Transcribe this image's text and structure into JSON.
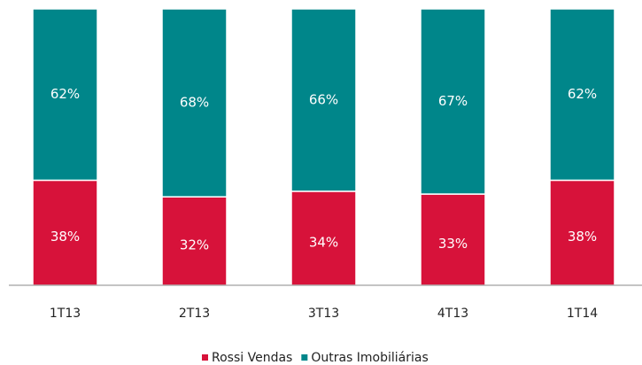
{
  "chart_data": {
    "type": "stacked_bar",
    "categories": [
      "1T13",
      "2T13",
      "3T13",
      "4T13",
      "1T14"
    ],
    "series": [
      {
        "name": "Rossi Vendas",
        "color": "#d7123a",
        "values": [
          38,
          32,
          34,
          33,
          38
        ],
        "value_labels": [
          "38%",
          "32%",
          "34%",
          "33%",
          "38%"
        ]
      },
      {
        "name": "Outras Imobiliárias",
        "color": "#00868a",
        "values": [
          62,
          68,
          66,
          67,
          62
        ],
        "value_labels": [
          "62%",
          "68%",
          "66%",
          "67%",
          "62%"
        ]
      }
    ],
    "ylim": [
      0,
      100
    ],
    "legend": "bottom"
  }
}
